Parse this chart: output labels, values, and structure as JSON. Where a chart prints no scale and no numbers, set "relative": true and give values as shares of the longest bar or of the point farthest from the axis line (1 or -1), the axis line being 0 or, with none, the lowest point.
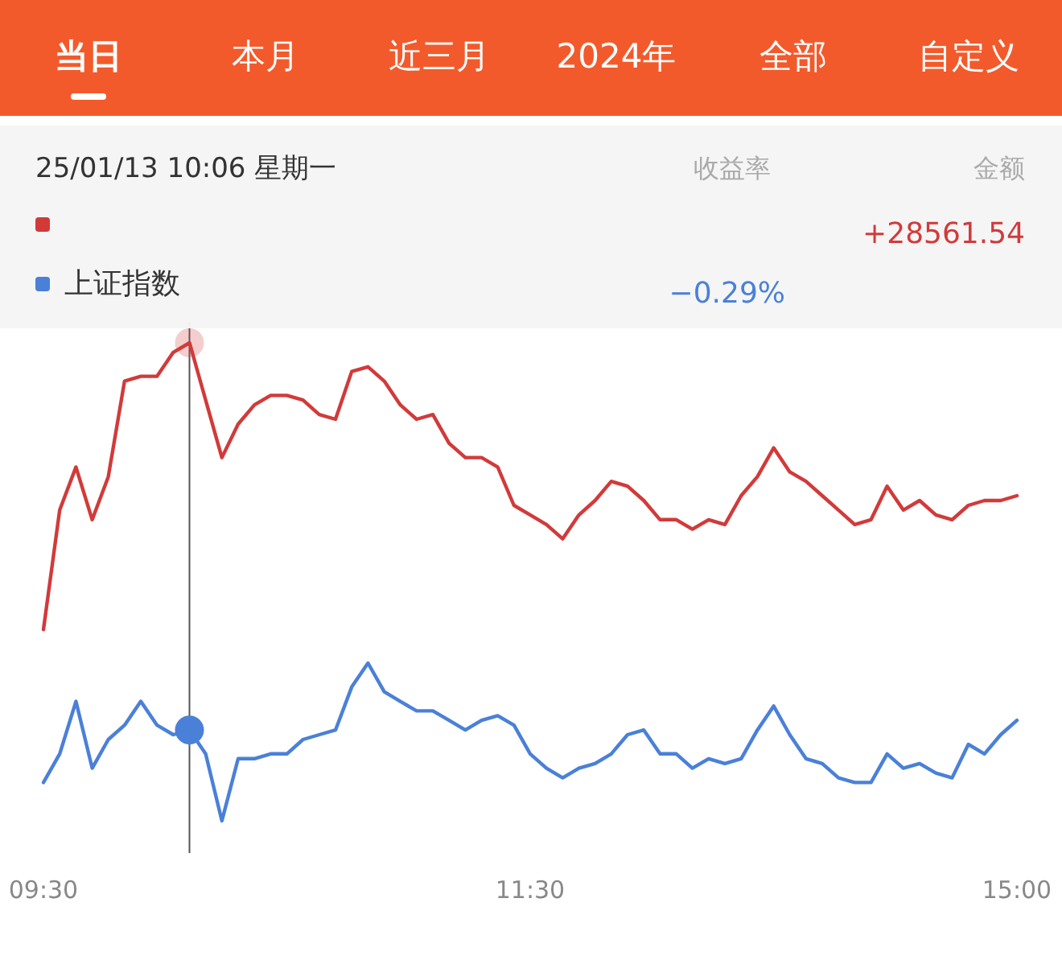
{
  "chart_data": {
    "type": "line",
    "relative": true,
    "legend": "top left",
    "marker": "none",
    "categories": [
      "09:30",
      null,
      null,
      null,
      null,
      null,
      null,
      null,
      null,
      null,
      null,
      null,
      null,
      null,
      null,
      null,
      null,
      null,
      null,
      null,
      null,
      null,
      null,
      null,
      null,
      null,
      null,
      null,
      null,
      null,
      "11:30",
      null,
      null,
      null,
      null,
      null,
      null,
      null,
      null,
      null,
      null,
      null,
      null,
      null,
      null,
      null,
      null,
      null,
      null,
      null,
      null,
      null,
      null,
      null,
      null,
      null,
      null,
      null,
      null,
      null,
      "15:00"
    ],
    "series": [
      {
        "color": "#d23a3a",
        "values": [
          0.4,
          0.65,
          0.74,
          0.63,
          0.72,
          0.92,
          0.93,
          0.93,
          0.98,
          1,
          0.88,
          0.76,
          0.83,
          0.87,
          0.89,
          0.89,
          0.88,
          0.85,
          0.84,
          0.94,
          0.95,
          0.92,
          0.87,
          0.84,
          0.85,
          0.79,
          0.76,
          0.76,
          0.74,
          0.66,
          0.64,
          0.62,
          0.59,
          0.64,
          0.67,
          0.71,
          0.7,
          0.67,
          0.63,
          0.63,
          0.61,
          0.63,
          0.62,
          0.68,
          0.72,
          0.78,
          0.73,
          0.71,
          0.68,
          0.65,
          0.62,
          0.63,
          0.7,
          0.65,
          0.67,
          0.64,
          0.63,
          0.66,
          0.67,
          0.67,
          0.68
        ]
      },
      {
        "name": "上证指数",
        "color": "#4a80d8",
        "values": [
          0.08,
          0.14,
          0.25,
          0.11,
          0.17,
          0.2,
          0.25,
          0.2,
          0.18,
          0.19,
          0.14,
          0,
          0.13,
          0.13,
          0.14,
          0.14,
          0.17,
          0.18,
          0.19,
          0.28,
          0.33,
          0.27,
          0.25,
          0.23,
          0.23,
          0.21,
          0.19,
          0.21,
          0.22,
          0.2,
          0.14,
          0.11,
          0.09,
          0.11,
          0.12,
          0.14,
          0.18,
          0.19,
          0.14,
          0.14,
          0.11,
          0.13,
          0.12,
          0.13,
          0.19,
          0.24,
          0.18,
          0.13,
          0.12,
          0.09,
          0.08,
          0.08,
          0.14,
          0.11,
          0.12,
          0.1,
          0.09,
          0.16,
          0.14,
          0.18,
          0.21
        ]
      }
    ],
    "ref_lines": [
      {
        "axis": "x",
        "value": "10:06",
        "color": "#555555"
      }
    ],
    "annotations": [
      "当日",
      "本月",
      "近三月",
      "2024年",
      "全部",
      "自定义",
      "25/01/13",
      "收益率",
      "金额",
      "+28561.54",
      "−0.29%",
      "星期一"
    ]
  }
}
